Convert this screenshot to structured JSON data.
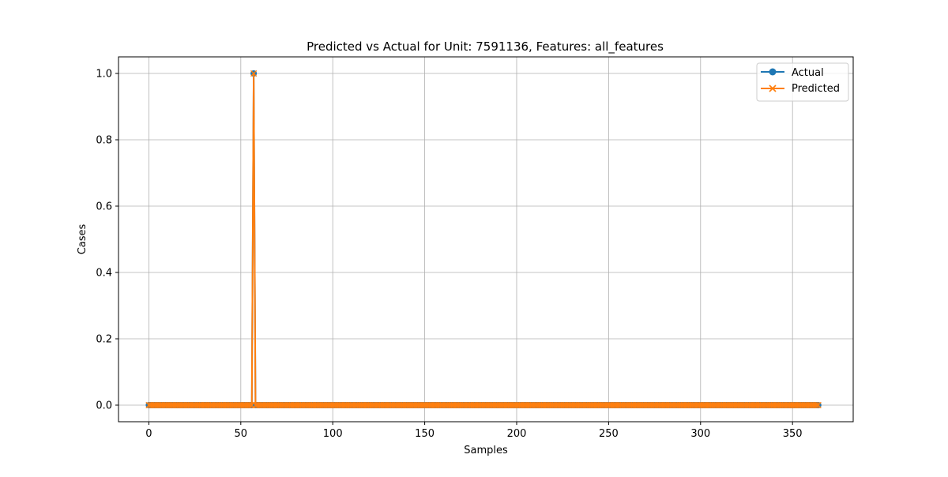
{
  "chart_data": {
    "type": "line",
    "title": "Predicted vs Actual for Unit: 7591136, Features: all_features",
    "xlabel": "Samples",
    "ylabel": "Cases",
    "xlim": [
      -16.5,
      383
    ],
    "ylim": [
      -0.05,
      1.05
    ],
    "x_ticks": [
      0,
      50,
      100,
      150,
      200,
      250,
      300,
      350
    ],
    "y_ticks": [
      0.0,
      0.2,
      0.4,
      0.6,
      0.8,
      1.0
    ],
    "x_tick_labels": [
      "0",
      "50",
      "100",
      "150",
      "200",
      "250",
      "300",
      "350"
    ],
    "y_tick_labels": [
      "0.0",
      "0.2",
      "0.4",
      "0.6",
      "0.8",
      "1.0"
    ],
    "grid": true,
    "legend_position": "top-right",
    "n_samples": 365,
    "series": [
      {
        "name": "Actual",
        "color": "#1f77b4",
        "marker": "circle",
        "default_value": 0,
        "nonzero": [
          [
            57,
            1
          ]
        ]
      },
      {
        "name": "Predicted",
        "color": "#ff7f0e",
        "marker": "x",
        "default_value": 0,
        "nonzero": [
          [
            57,
            1
          ]
        ]
      }
    ]
  }
}
